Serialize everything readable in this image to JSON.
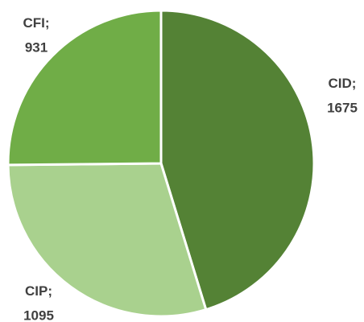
{
  "chart_data": {
    "type": "pie",
    "categories": [
      "CID",
      "CIP",
      "CFI"
    ],
    "values": [
      1675,
      1095,
      931
    ],
    "colors": [
      "#548235",
      "#a9d18e",
      "#70ad47"
    ],
    "label_separator": ";"
  }
}
